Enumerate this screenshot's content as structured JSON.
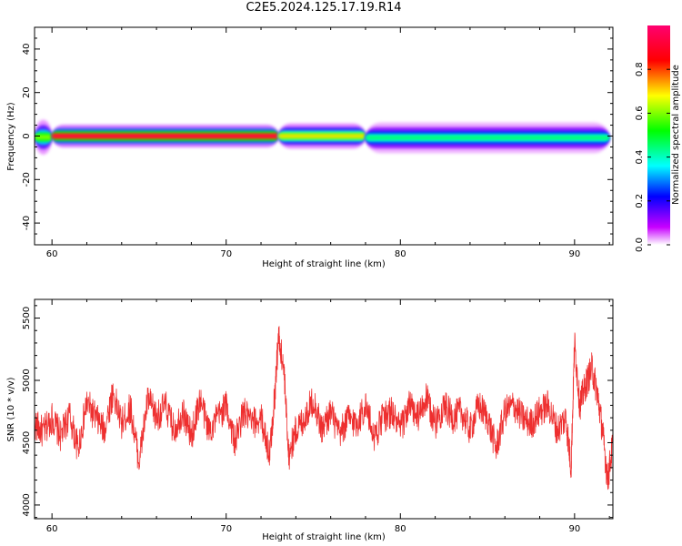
{
  "title": "C2E5.2024.125.17.19.R14",
  "colors": {
    "snr_line": "#ee2f2f",
    "colormap": [
      "#ff00a8",
      "#ff0000",
      "#ffff00",
      "#00ff00",
      "#00ffff",
      "#0000ff",
      "#ffffff"
    ]
  },
  "chart_data": [
    {
      "type": "heatmap",
      "xlabel": "Height of straight line (km)",
      "ylabel": "Frequency (Hz)",
      "xlim": [
        59.0,
        92.2
      ],
      "ylim": [
        -50,
        50
      ],
      "x_ticks": [
        60,
        70,
        80,
        90
      ],
      "y_ticks": [
        40,
        20,
        0,
        -20,
        -40
      ],
      "grid": false,
      "description_of_signal": "narrow band centered near 0 Hz across all heights; strongest (red/magenta) between 60 and 73 km, yellow-green between 73 and 78 km, green/cyan from 78 to 92 km",
      "band_segments": [
        {
          "x_start": 59.0,
          "x_end": 60.0,
          "center_hz": -0.5,
          "halfwidth_hz": 2.5,
          "amplitude": 0.6
        },
        {
          "x_start": 60.0,
          "x_end": 73.0,
          "center_hz": 0.0,
          "halfwidth_hz": 1.6,
          "amplitude": 0.95
        },
        {
          "x_start": 73.0,
          "x_end": 78.0,
          "center_hz": 0.0,
          "halfwidth_hz": 1.8,
          "amplitude": 0.7
        },
        {
          "x_start": 78.0,
          "x_end": 92.0,
          "center_hz": -0.8,
          "halfwidth_hz": 2.2,
          "amplitude": 0.45
        }
      ],
      "colorbar": {
        "label": "Normalized spectral amplitude",
        "range": [
          0.0,
          1.0
        ],
        "ticks": [
          "0.0",
          "0.2",
          "0.4",
          "0.6",
          "0.8"
        ]
      }
    },
    {
      "type": "line",
      "xlabel": "Height of straight line (km)",
      "ylabel": "SNR (10 * v/v)",
      "xlim": [
        59.0,
        92.2
      ],
      "ylim": [
        3890,
        5650
      ],
      "x_ticks": [
        60,
        70,
        80,
        90
      ],
      "y_ticks": [
        4000,
        4500,
        5000,
        5500
      ],
      "grid": false,
      "series": [
        {
          "x": [
            59.0,
            59.5,
            60.0,
            60.5,
            61.0,
            61.5,
            62.0,
            62.5,
            63.0,
            63.5,
            64.0,
            64.5,
            65.0,
            65.5,
            66.0,
            66.5,
            67.0,
            67.5,
            68.0,
            68.5,
            69.0,
            69.5,
            70.0,
            70.5,
            71.0,
            71.5,
            72.0,
            72.5,
            72.8,
            73.0,
            73.3,
            73.6,
            74.0,
            74.5,
            75.0,
            75.5,
            76.0,
            76.5,
            77.0,
            77.5,
            78.0,
            78.5,
            79.0,
            79.5,
            80.0,
            80.5,
            81.0,
            81.5,
            82.0,
            82.5,
            83.0,
            83.5,
            84.0,
            84.5,
            85.0,
            85.5,
            86.0,
            86.5,
            87.0,
            87.5,
            88.0,
            88.5,
            89.0,
            89.5,
            89.8,
            90.0,
            90.3,
            90.6,
            91.0,
            91.3,
            91.6,
            91.9,
            92.2
          ],
          "values": [
            4650,
            4580,
            4700,
            4550,
            4720,
            4450,
            4820,
            4700,
            4600,
            4900,
            4650,
            4780,
            4350,
            4850,
            4700,
            4800,
            4600,
            4750,
            4550,
            4850,
            4600,
            4700,
            4800,
            4500,
            4750,
            4650,
            4700,
            4400,
            4900,
            5350,
            5100,
            4400,
            4600,
            4700,
            4850,
            4600,
            4750,
            4550,
            4700,
            4650,
            4800,
            4550,
            4700,
            4750,
            4600,
            4800,
            4700,
            4850,
            4650,
            4800,
            4700,
            4750,
            4600,
            4800,
            4700,
            4450,
            4750,
            4800,
            4700,
            4650,
            4750,
            4800,
            4600,
            4700,
            4300,
            5300,
            4800,
            4950,
            5100,
            4900,
            4600,
            4200,
            4500
          ]
        }
      ]
    }
  ]
}
